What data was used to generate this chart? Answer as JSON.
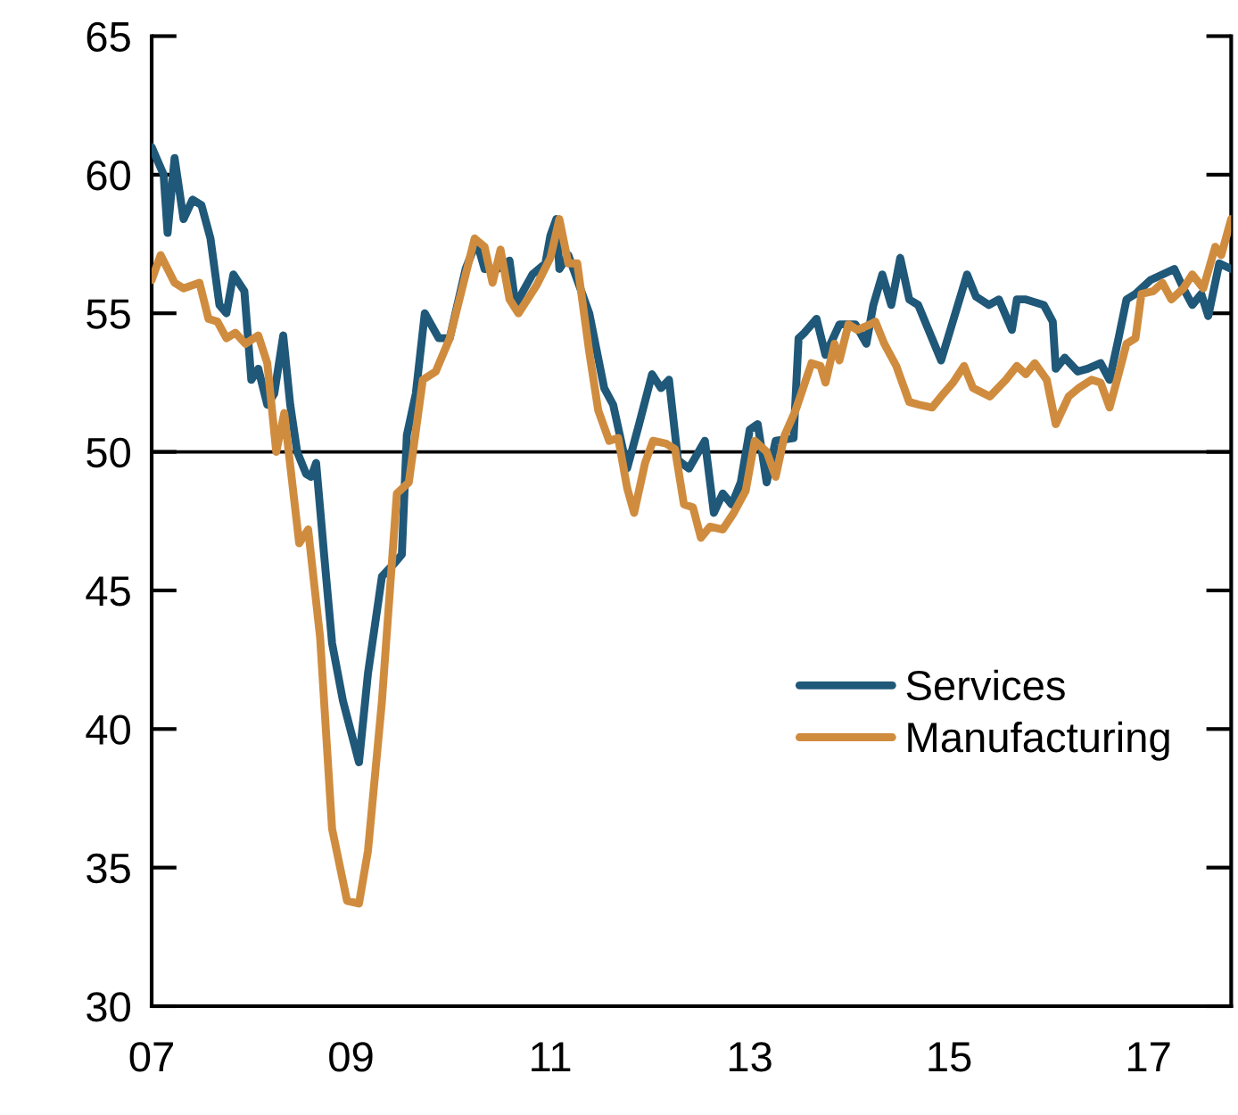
{
  "chart_data": {
    "type": "line",
    "xlim": [
      2007,
      2017.83
    ],
    "xticks": [
      {
        "value": 2007,
        "label": "07"
      },
      {
        "value": 2009,
        "label": "09"
      },
      {
        "value": 2011,
        "label": "11"
      },
      {
        "value": 2013,
        "label": "13"
      },
      {
        "value": 2015,
        "label": "15"
      },
      {
        "value": 2017,
        "label": "17"
      }
    ],
    "ylim": [
      30,
      65
    ],
    "yticks": [
      30,
      35,
      40,
      45,
      50,
      55,
      60,
      65
    ],
    "ref_lines": [
      {
        "axis": "y",
        "value": 50,
        "color": "#000000"
      }
    ],
    "grid": false,
    "legend": "center right",
    "line_style": "solid",
    "marker": "none",
    "series": [
      {
        "name": "Services",
        "color": "#1f5878",
        "x": [
          2007.0,
          2007.12,
          2007.16,
          2007.23,
          2007.32,
          2007.41,
          2007.5,
          2007.59,
          2007.68,
          2007.75,
          2007.82,
          2007.93,
          2008.0,
          2008.07,
          2008.16,
          2008.23,
          2008.32,
          2008.39,
          2008.46,
          2008.55,
          2008.6,
          2008.65,
          2008.73,
          2008.81,
          2008.92,
          2009.08,
          2009.17,
          2009.31,
          2009.44,
          2009.51,
          2009.56,
          2009.65,
          2009.74,
          2009.88,
          2009.99,
          2010.15,
          2010.26,
          2010.34,
          2010.47,
          2010.59,
          2010.65,
          2010.82,
          2010.95,
          2011.0,
          2011.06,
          2011.09,
          2011.18,
          2011.39,
          2011.54,
          2011.63,
          2011.77,
          2011.89,
          2012.02,
          2012.11,
          2012.19,
          2012.28,
          2012.39,
          2012.55,
          2012.64,
          2012.73,
          2012.82,
          2012.91,
          2013.0,
          2013.08,
          2013.17,
          2013.26,
          2013.44,
          2013.49,
          2013.55,
          2013.67,
          2013.76,
          2013.9,
          2014.06,
          2014.17,
          2014.24,
          2014.33,
          2014.42,
          2014.51,
          2014.6,
          2014.69,
          2014.92,
          2015.18,
          2015.27,
          2015.4,
          2015.5,
          2015.63,
          2015.68,
          2015.77,
          2015.95,
          2016.04,
          2016.07,
          2016.16,
          2016.29,
          2016.39,
          2016.52,
          2016.61,
          2016.7,
          2016.78,
          2016.87,
          2017.02,
          2017.26,
          2017.35,
          2017.44,
          2017.53,
          2017.6,
          2017.71,
          2017.83
        ],
        "values": [
          61.0,
          60.0,
          57.9,
          60.6,
          58.4,
          59.1,
          58.9,
          57.7,
          55.3,
          55.0,
          56.4,
          55.8,
          52.6,
          53.0,
          51.7,
          52.1,
          54.2,
          51.7,
          50.0,
          49.2,
          49.1,
          49.6,
          46.3,
          43.1,
          41.0,
          38.8,
          42.0,
          45.5,
          46.0,
          46.3,
          50.6,
          52.1,
          55.0,
          54.1,
          54.1,
          56.6,
          57.6,
          56.6,
          56.6,
          56.9,
          55.3,
          56.4,
          56.8,
          57.8,
          58.4,
          56.6,
          57.1,
          55.0,
          52.3,
          51.7,
          49.4,
          51.0,
          52.8,
          52.3,
          52.6,
          49.7,
          49.4,
          50.4,
          47.8,
          48.5,
          48.1,
          48.9,
          50.8,
          51.0,
          48.9,
          50.4,
          50.5,
          54.1,
          54.3,
          54.8,
          53.5,
          54.6,
          54.6,
          53.9,
          55.3,
          56.4,
          55.3,
          57.0,
          55.5,
          55.3,
          53.3,
          56.4,
          55.6,
          55.3,
          55.5,
          54.4,
          55.5,
          55.5,
          55.3,
          54.7,
          53.0,
          53.4,
          52.9,
          53.0,
          53.2,
          52.6,
          54.1,
          55.5,
          55.7,
          56.2,
          56.6,
          55.9,
          55.3,
          55.7,
          54.9,
          56.8,
          56.6
        ]
      },
      {
        "name": "Manufacturing",
        "color": "#d08c3e",
        "x": [
          2007.0,
          2007.09,
          2007.23,
          2007.32,
          2007.48,
          2007.57,
          2007.66,
          2007.75,
          2007.84,
          2007.94,
          2008.07,
          2008.16,
          2008.25,
          2008.33,
          2008.48,
          2008.57,
          2008.69,
          2008.81,
          2008.96,
          2009.08,
          2009.17,
          2009.31,
          2009.46,
          2009.58,
          2009.72,
          2009.85,
          2009.99,
          2010.15,
          2010.24,
          2010.34,
          2010.42,
          2010.5,
          2010.59,
          2010.68,
          2010.86,
          2011.0,
          2011.09,
          2011.18,
          2011.27,
          2011.39,
          2011.48,
          2011.59,
          2011.68,
          2011.77,
          2011.84,
          2011.95,
          2012.03,
          2012.16,
          2012.25,
          2012.34,
          2012.43,
          2012.51,
          2012.6,
          2012.73,
          2012.84,
          2012.96,
          2013.05,
          2013.17,
          2013.26,
          2013.35,
          2013.46,
          2013.62,
          2013.71,
          2013.76,
          2013.85,
          2013.9,
          2013.99,
          2014.08,
          2014.21,
          2014.26,
          2014.35,
          2014.47,
          2014.6,
          2014.7,
          2014.83,
          2014.92,
          2015.04,
          2015.15,
          2015.24,
          2015.41,
          2015.57,
          2015.68,
          2015.77,
          2015.86,
          2015.98,
          2016.07,
          2016.2,
          2016.3,
          2016.43,
          2016.52,
          2016.61,
          2016.7,
          2016.78,
          2016.87,
          2016.93,
          2017.05,
          2017.14,
          2017.23,
          2017.35,
          2017.44,
          2017.55,
          2017.67,
          2017.73,
          2017.83
        ],
        "values": [
          56.2,
          57.1,
          56.1,
          55.9,
          56.1,
          54.8,
          54.7,
          54.1,
          54.3,
          53.9,
          54.2,
          53.2,
          50.0,
          51.4,
          46.7,
          47.2,
          43.3,
          36.4,
          33.8,
          33.7,
          35.6,
          41.0,
          48.5,
          48.9,
          52.6,
          52.9,
          54.1,
          56.4,
          57.7,
          57.4,
          56.1,
          57.3,
          55.5,
          55.0,
          56.0,
          57.0,
          58.4,
          56.8,
          56.8,
          53.6,
          51.5,
          50.4,
          50.5,
          48.7,
          47.8,
          49.6,
          50.4,
          50.3,
          50.1,
          48.1,
          48.0,
          46.9,
          47.3,
          47.2,
          47.8,
          48.6,
          50.4,
          50.0,
          49.1,
          50.6,
          51.5,
          53.2,
          53.1,
          52.5,
          53.9,
          53.3,
          54.6,
          54.4,
          54.6,
          54.7,
          53.9,
          53.1,
          51.8,
          51.7,
          51.6,
          52.0,
          52.5,
          53.1,
          52.3,
          52.0,
          52.6,
          53.1,
          52.8,
          53.2,
          52.6,
          51.0,
          52.0,
          52.3,
          52.6,
          52.5,
          51.6,
          52.8,
          53.9,
          54.1,
          55.7,
          55.8,
          56.1,
          55.5,
          55.9,
          56.4,
          55.9,
          57.4,
          57.1,
          58.4
        ]
      }
    ]
  }
}
